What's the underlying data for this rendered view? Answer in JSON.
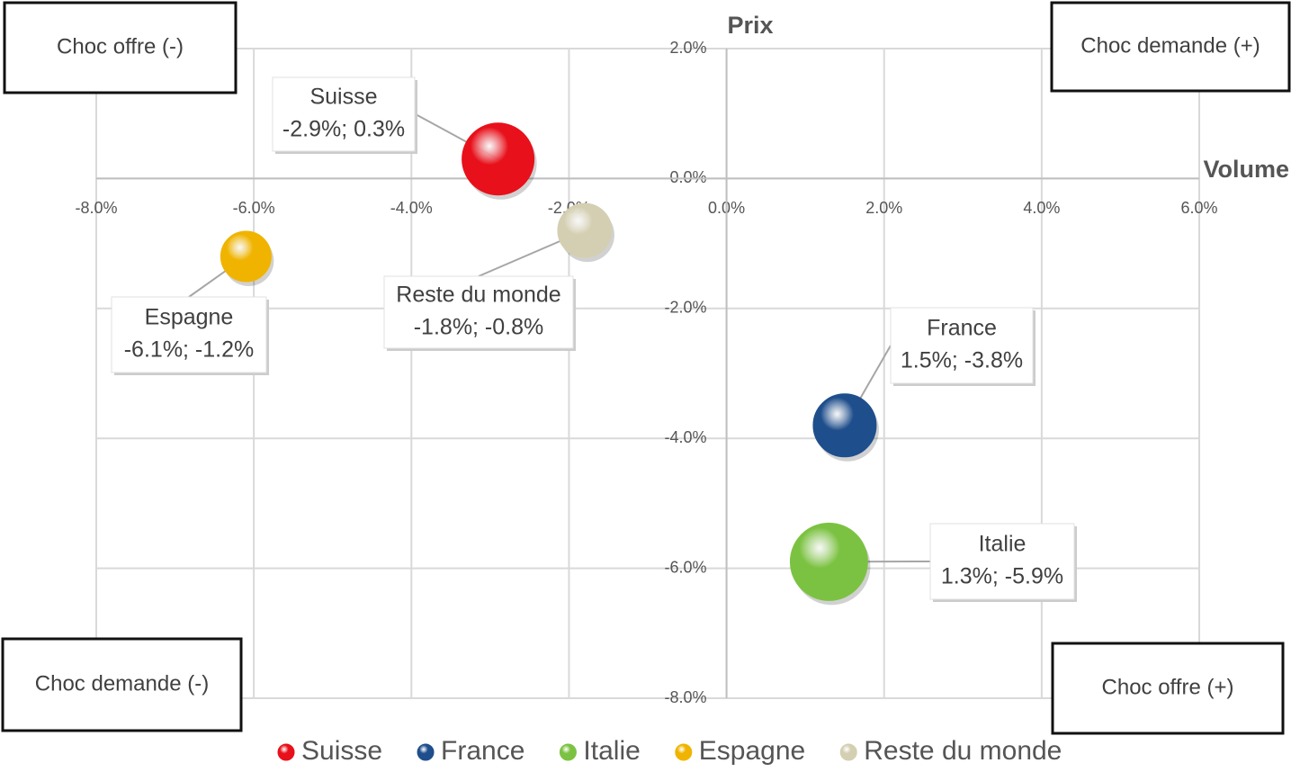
{
  "chart_data": {
    "type": "bubble",
    "xlabel": "Volume",
    "ylabel": "Prix",
    "xlim": [
      -8,
      6
    ],
    "ylim": [
      -8,
      2
    ],
    "xticks": [
      {
        "value": -8,
        "label": "-8.0%"
      },
      {
        "value": -6,
        "label": "-6.0%"
      },
      {
        "value": -4,
        "label": "-4.0%"
      },
      {
        "value": -2,
        "label": "-2.0%"
      },
      {
        "value": 0,
        "label": "0.0%"
      },
      {
        "value": 2,
        "label": "2.0%"
      },
      {
        "value": 4,
        "label": "4.0%"
      },
      {
        "value": 6,
        "label": "6.0%"
      }
    ],
    "yticks": [
      {
        "value": 2,
        "label": "2.0%"
      },
      {
        "value": 0,
        "label": "0.0%"
      },
      {
        "value": -2,
        "label": "-2.0%"
      },
      {
        "value": -4,
        "label": "-4.0%"
      },
      {
        "value": -6,
        "label": "-6.0%"
      },
      {
        "value": -8,
        "label": "-8.0%"
      }
    ],
    "grid": true,
    "legend": "bottom",
    "annotations": [
      "Choc offre (-)",
      "Choc demande (+)",
      "Choc demande (-)",
      "Choc offre (+)"
    ],
    "series": [
      {
        "name": "Suisse",
        "color": "#e8101a",
        "x": [
          -2.9
        ],
        "values": [
          0.3
        ],
        "size": [
          40
        ],
        "value_labels": [
          "-2.9%; 0.3%"
        ]
      },
      {
        "name": "France",
        "color": "#1f4e8c",
        "x": [
          1.5
        ],
        "values": [
          -3.8
        ],
        "size": [
          35
        ],
        "value_labels": [
          "1.5%; -3.8%"
        ]
      },
      {
        "name": "Italie",
        "color": "#7cc242",
        "x": [
          1.3
        ],
        "values": [
          -5.9
        ],
        "size": [
          43
        ],
        "value_labels": [
          "1.3%; -5.9%"
        ]
      },
      {
        "name": "Espagne",
        "color": "#f0b400",
        "x": [
          -6.1
        ],
        "values": [
          -1.2
        ],
        "size": [
          28
        ],
        "value_labels": [
          "-6.1%; -1.2%"
        ]
      },
      {
        "name": "Reste du monde",
        "color": "#d4cfb2",
        "x": [
          -1.8
        ],
        "values": [
          -0.8
        ],
        "size": [
          30
        ],
        "value_labels": [
          "-1.8%; -0.8%"
        ]
      }
    ]
  }
}
